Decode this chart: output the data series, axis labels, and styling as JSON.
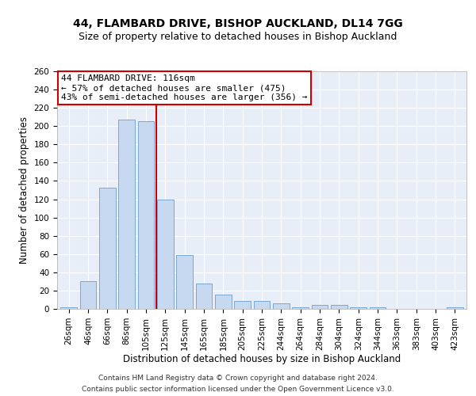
{
  "title1": "44, FLAMBARD DRIVE, BISHOP AUCKLAND, DL14 7GG",
  "title2": "Size of property relative to detached houses in Bishop Auckland",
  "xlabel": "Distribution of detached houses by size in Bishop Auckland",
  "ylabel": "Number of detached properties",
  "categories": [
    "26sqm",
    "46sqm",
    "66sqm",
    "86sqm",
    "105sqm",
    "125sqm",
    "145sqm",
    "165sqm",
    "185sqm",
    "205sqm",
    "225sqm",
    "244sqm",
    "264sqm",
    "284sqm",
    "304sqm",
    "324sqm",
    "344sqm",
    "363sqm",
    "383sqm",
    "403sqm",
    "423sqm"
  ],
  "values": [
    2,
    30,
    133,
    207,
    205,
    120,
    59,
    28,
    16,
    9,
    9,
    6,
    2,
    4,
    4,
    2,
    2,
    0,
    0,
    0,
    2
  ],
  "bar_color": "#c6d9f0",
  "bar_edge_color": "#7ba7d0",
  "vline_x_index": 4.55,
  "vline_color": "#cc0000",
  "annotation_title": "44 FLAMBARD DRIVE: 116sqm",
  "annotation_line1": "← 57% of detached houses are smaller (475)",
  "annotation_line2": "43% of semi-detached houses are larger (356) →",
  "annotation_box_color": "#ffffff",
  "annotation_box_edge_color": "#cc0000",
  "ylim": [
    0,
    260
  ],
  "yticks": [
    0,
    20,
    40,
    60,
    80,
    100,
    120,
    140,
    160,
    180,
    200,
    220,
    240,
    260
  ],
  "bg_color": "#e8eef8",
  "footnote1": "Contains HM Land Registry data © Crown copyright and database right 2024.",
  "footnote2": "Contains public sector information licensed under the Open Government Licence v3.0.",
  "title1_fontsize": 10,
  "title2_fontsize": 9,
  "xlabel_fontsize": 8.5,
  "ylabel_fontsize": 8.5,
  "tick_fontsize": 7.5,
  "annotation_fontsize": 8,
  "footnote_fontsize": 6.5
}
